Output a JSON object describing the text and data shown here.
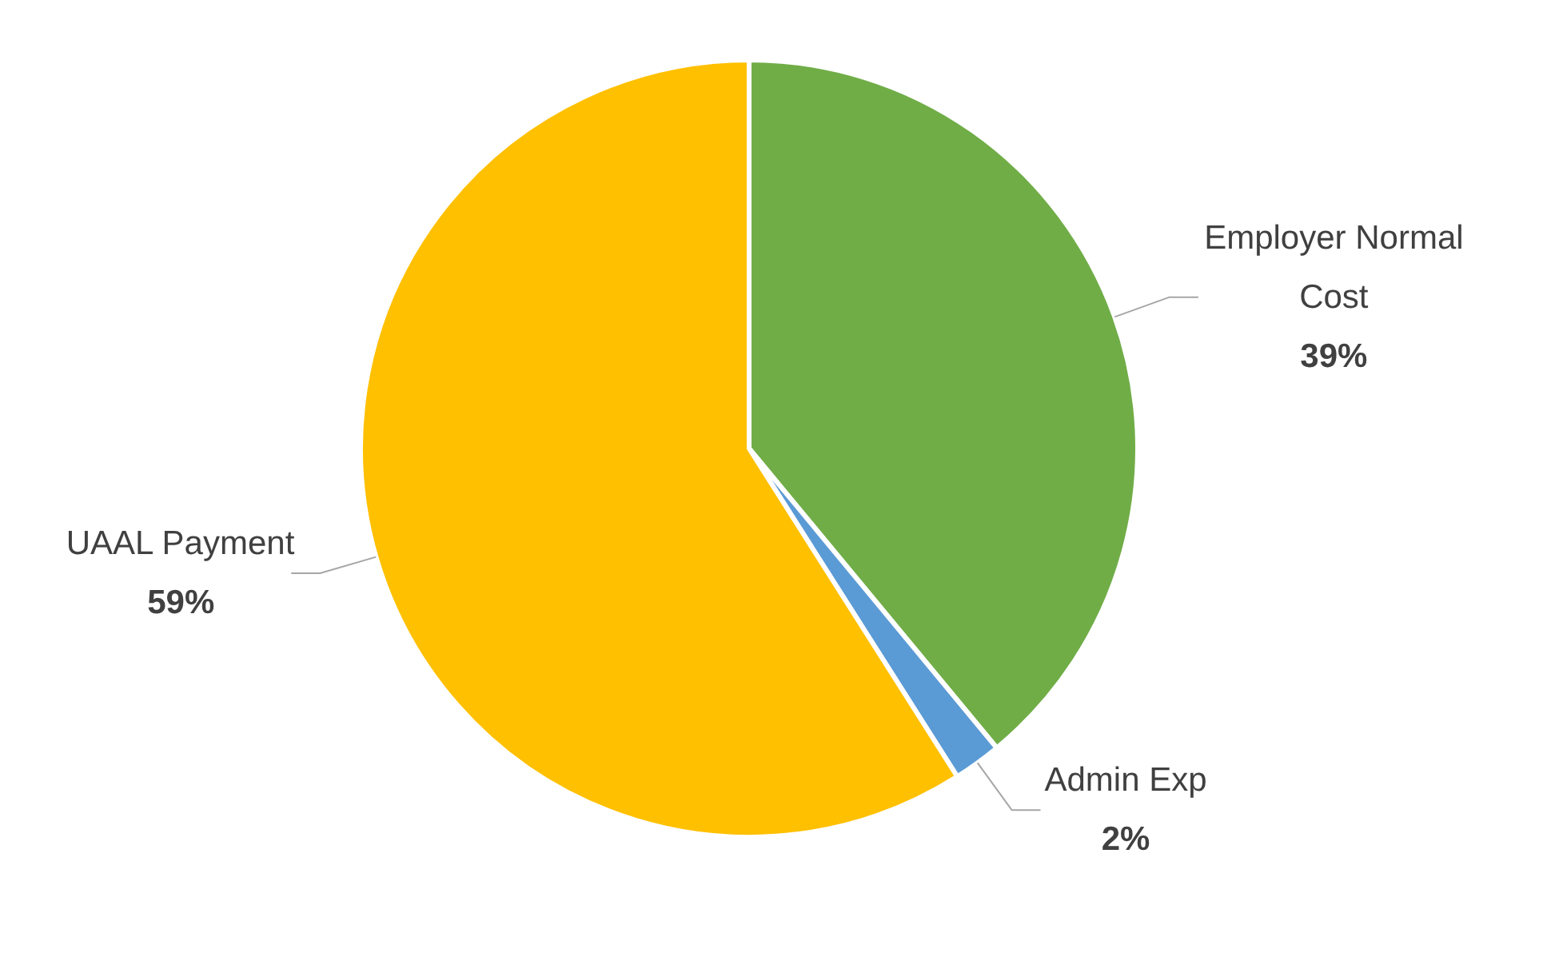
{
  "chart_data": {
    "type": "pie",
    "categories": [
      "Employer Normal Cost",
      "Admin Exp",
      "UAAL Payment"
    ],
    "values": [
      39,
      2,
      59
    ],
    "colors": [
      "#70ad47",
      "#5b9bd5",
      "#ffc000"
    ],
    "value_labels": [
      "39%",
      "2%",
      "59%"
    ]
  }
}
